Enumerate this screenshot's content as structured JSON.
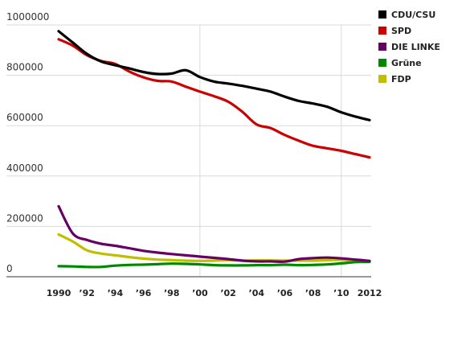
{
  "chart_data": {
    "type": "line",
    "title": "",
    "xlabel": "",
    "ylabel": "",
    "xlim": [
      1990,
      2012
    ],
    "ylim": [
      0,
      1000000
    ],
    "y_ticks": [
      {
        "value": 0,
        "label": "0"
      },
      {
        "value": 200000,
        "label": "200000"
      },
      {
        "value": 400000,
        "label": "400000"
      },
      {
        "value": 600000,
        "label": "600000"
      },
      {
        "value": 800000,
        "label": "800000"
      },
      {
        "value": 1000000,
        "label": "1000000"
      }
    ],
    "x_ticks": [
      {
        "value": 1990,
        "label": "1990"
      },
      {
        "value": 1992,
        "label": "’92"
      },
      {
        "value": 1994,
        "label": "’94"
      },
      {
        "value": 1996,
        "label": "’96"
      },
      {
        "value": 1998,
        "label": "’98"
      },
      {
        "value": 2000,
        "label": "’00"
      },
      {
        "value": 2002,
        "label": "’02"
      },
      {
        "value": 2004,
        "label": "’04"
      },
      {
        "value": 2006,
        "label": "’06"
      },
      {
        "value": 2008,
        "label": "’08"
      },
      {
        "value": 2010,
        "label": "’10"
      },
      {
        "value": 2012,
        "label": "2012"
      }
    ],
    "x_gridlines": [
      2000,
      2010
    ],
    "grid": true,
    "legend_position": "top-right",
    "x": [
      1990,
      1991,
      1992,
      1993,
      1994,
      1995,
      1996,
      1997,
      1998,
      1999,
      2000,
      2001,
      2002,
      2003,
      2004,
      2005,
      2006,
      2007,
      2008,
      2009,
      2010,
      2011,
      2012
    ],
    "series": [
      {
        "name": "CDU/CSU",
        "color": "#000000",
        "values": [
          975000,
          930000,
          885000,
          855000,
          840000,
          827000,
          813000,
          805000,
          807000,
          820000,
          793000,
          775000,
          767000,
          758000,
          747000,
          735000,
          715000,
          698000,
          688000,
          675000,
          653000,
          636000,
          622000
        ]
      },
      {
        "name": "SPD",
        "color": "#cc0000",
        "values": [
          943000,
          918000,
          880000,
          857000,
          845000,
          815000,
          792000,
          778000,
          775000,
          755000,
          735000,
          717000,
          695000,
          655000,
          605000,
          590000,
          563000,
          540000,
          520000,
          510000,
          500000,
          487000,
          474000
        ]
      },
      {
        "name": "DIE LINKE",
        "color": "#660066",
        "values": [
          280000,
          172000,
          146000,
          131000,
          123000,
          113000,
          103000,
          96000,
          90000,
          85000,
          80000,
          75000,
          70000,
          64000,
          61000,
          61000,
          60000,
          70000,
          74000,
          76000,
          73000,
          68000,
          63000
        ]
      },
      {
        "name": "Grüne",
        "color": "#008800",
        "values": [
          42000,
          41000,
          39000,
          39000,
          44000,
          47000,
          48000,
          50000,
          52000,
          51000,
          49000,
          46000,
          45000,
          45000,
          46000,
          46000,
          48000,
          46000,
          47000,
          49000,
          53000,
          58000,
          59000
        ]
      },
      {
        "name": "FDP",
        "color": "#bfbf00",
        "values": [
          168000,
          140000,
          105000,
          92000,
          85000,
          78000,
          72000,
          68000,
          66000,
          64000,
          63000,
          64000,
          66000,
          64000,
          65000,
          65000,
          64000,
          64000,
          64000,
          66000,
          67000,
          64000,
          61000
        ]
      }
    ]
  }
}
